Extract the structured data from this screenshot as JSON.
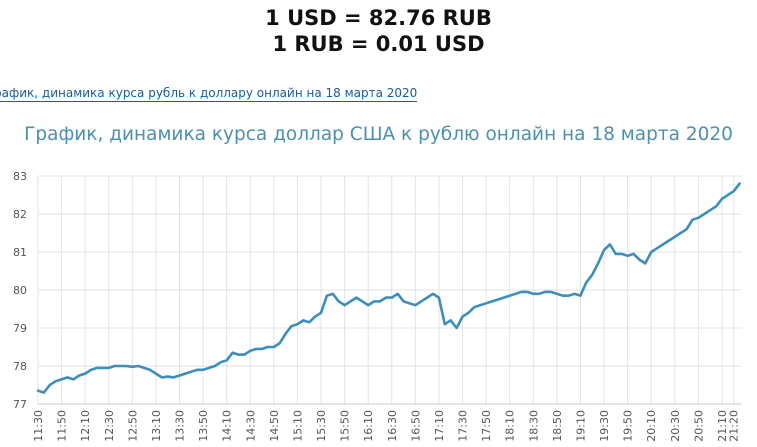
{
  "header": {
    "rate_usd_rub": "1 USD = 82.76 RUB",
    "rate_rub_usd": "1 RUB = 0.01 USD"
  },
  "link": {
    "text": "рафик, динамика курса рубль к доллару онлайн на 18 марта 2020"
  },
  "chart_data": {
    "type": "line",
    "title": "График, динамика курса доллар США к рублю онлайн на 18 марта 2020",
    "xlabel": "",
    "ylabel": "",
    "ylim": [
      77,
      83
    ],
    "yticks": [
      77,
      78,
      79,
      80,
      81,
      82,
      83
    ],
    "grid": true,
    "legend": "none",
    "line_color": "#3a8fc0",
    "categories": [
      "11:30",
      "11:50",
      "12:10",
      "12:30",
      "12:50",
      "13:10",
      "13:30",
      "13:50",
      "14:10",
      "14:30",
      "14:50",
      "15:10",
      "15:30",
      "15:50",
      "16:10",
      "16:30",
      "16:50",
      "17:10",
      "17:30",
      "17:50",
      "18:10",
      "18:30",
      "18:50",
      "19:10",
      "19:30",
      "19:50",
      "20:10",
      "20:30",
      "20:50",
      "21:10",
      "21:20"
    ],
    "series": [
      {
        "name": "",
        "x": [
          "11:30",
          "11:35",
          "11:40",
          "11:45",
          "11:50",
          "11:55",
          "12:00",
          "12:05",
          "12:10",
          "12:15",
          "12:20",
          "12:25",
          "12:30",
          "12:35",
          "12:40",
          "12:45",
          "12:50",
          "12:55",
          "13:00",
          "13:05",
          "13:10",
          "13:15",
          "13:20",
          "13:25",
          "13:30",
          "13:35",
          "13:40",
          "13:45",
          "13:50",
          "13:55",
          "14:00",
          "14:05",
          "14:10",
          "14:15",
          "14:20",
          "14:25",
          "14:30",
          "14:35",
          "14:40",
          "14:45",
          "14:50",
          "14:55",
          "15:00",
          "15:05",
          "15:10",
          "15:15",
          "15:20",
          "15:25",
          "15:30",
          "15:35",
          "15:40",
          "15:45",
          "15:50",
          "15:55",
          "16:00",
          "16:05",
          "16:10",
          "16:15",
          "16:20",
          "16:25",
          "16:30",
          "16:35",
          "16:40",
          "16:45",
          "16:50",
          "16:55",
          "17:00",
          "17:05",
          "17:10",
          "17:15",
          "17:20",
          "17:25",
          "17:30",
          "17:35",
          "17:40",
          "17:45",
          "17:50",
          "17:55",
          "18:00",
          "18:05",
          "18:10",
          "18:15",
          "18:20",
          "18:25",
          "18:30",
          "18:35",
          "18:40",
          "18:45",
          "18:50",
          "18:55",
          "19:00",
          "19:05",
          "19:10",
          "19:15",
          "19:20",
          "19:25",
          "19:30",
          "19:35",
          "19:40",
          "19:45",
          "19:50",
          "19:55",
          "20:00",
          "20:05",
          "20:10",
          "20:15",
          "20:20",
          "20:25",
          "20:30",
          "20:35",
          "20:40",
          "20:45",
          "20:50",
          "20:55",
          "21:00",
          "21:05",
          "21:10",
          "21:15",
          "21:20",
          "21:25"
        ],
        "values": [
          77.35,
          77.3,
          77.5,
          77.6,
          77.65,
          77.7,
          77.65,
          77.75,
          77.8,
          77.9,
          77.95,
          77.95,
          77.95,
          78.0,
          78.0,
          78.0,
          77.98,
          78.0,
          77.95,
          77.9,
          77.8,
          77.7,
          77.72,
          77.7,
          77.75,
          77.8,
          77.85,
          77.9,
          77.9,
          77.95,
          78.0,
          78.1,
          78.15,
          78.35,
          78.3,
          78.3,
          78.4,
          78.45,
          78.45,
          78.5,
          78.5,
          78.6,
          78.85,
          79.05,
          79.1,
          79.2,
          79.15,
          79.3,
          79.4,
          79.85,
          79.9,
          79.7,
          79.6,
          79.7,
          79.8,
          79.7,
          79.6,
          79.7,
          79.7,
          79.8,
          79.8,
          79.9,
          79.7,
          79.65,
          79.6,
          79.7,
          79.8,
          79.9,
          79.8,
          79.1,
          79.2,
          79.0,
          79.3,
          79.4,
          79.55,
          79.6,
          79.65,
          79.7,
          79.75,
          79.8,
          79.85,
          79.9,
          79.95,
          79.95,
          79.9,
          79.9,
          79.95,
          79.95,
          79.9,
          79.85,
          79.85,
          79.9,
          79.85,
          80.2,
          80.4,
          80.7,
          81.05,
          81.2,
          80.95,
          80.95,
          80.9,
          80.95,
          80.8,
          80.7,
          81.0,
          81.1,
          81.2,
          81.3,
          81.4,
          81.5,
          81.6,
          81.85,
          81.9,
          82.0,
          82.1,
          82.2,
          82.4,
          82.5,
          82.6,
          82.8
        ]
      }
    ]
  }
}
